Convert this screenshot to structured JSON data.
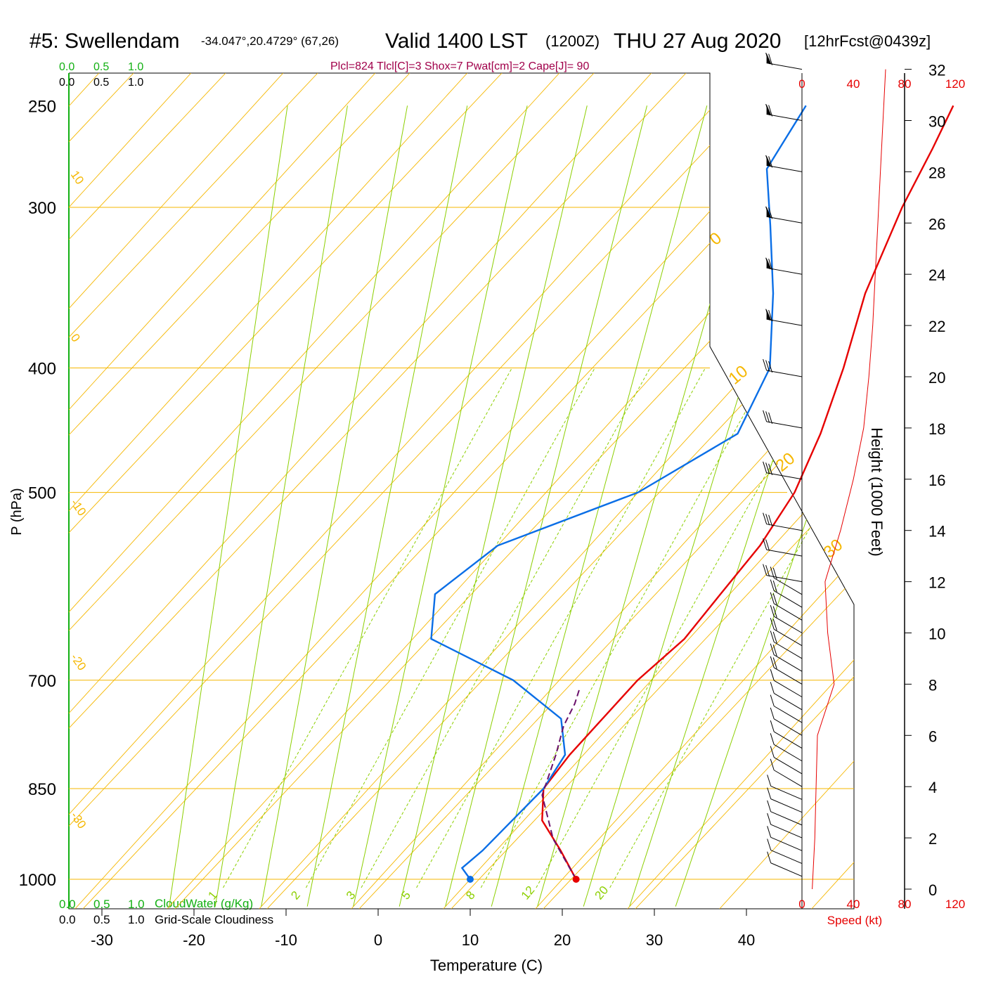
{
  "header": {
    "station": "#5: Swellendam",
    "coords": "-34.047°,20.4729° (67,26)",
    "valid": "Valid 1400 LST",
    "utc": "(1200Z)",
    "date": "THU 27 Aug 2020",
    "forecast": "[12hrFcst@0439z]",
    "indices": "Plcl=824 Tlcl[C]=3 Shox=7 Pwat[cm]=2 Cape[J]= 90"
  },
  "labels": {
    "pressure_axis": "P (hPa)",
    "temp_axis": "Temperature (C)",
    "height_axis": "Height (1000 Feet)",
    "speed_axis": "Speed (kt)",
    "cloudwater": "CloudWater (g/Kg)",
    "cloudiness": "Grid-Scale Cloudiness",
    "scale_0": "0.0",
    "scale_05": "0.5",
    "scale_10": "1.0"
  },
  "colors": {
    "isobar": "#f5b700",
    "dry_adiabat": "#f5b700",
    "moist_adiabat": "#8ccf00",
    "mixing_ratio": "#8ccf00",
    "temperature": "#e60000",
    "dewpoint": "#0a6ee6",
    "parcel": "#6a0f6a",
    "indices": "#a0004a",
    "cloud": "#12b012",
    "speed": "#e60000"
  },
  "chart_data": {
    "type": "line",
    "title": "#5: Swellendam",
    "xlabel": "Temperature (C)",
    "ylabel": "P (hPa)",
    "xticks": [
      -30,
      -20,
      -10,
      0,
      10,
      20,
      30,
      40
    ],
    "pressure_levels": [
      250,
      300,
      400,
      500,
      700,
      850,
      1000
    ],
    "height_ticks": [
      0,
      2,
      4,
      6,
      8,
      10,
      12,
      14,
      16,
      18,
      20,
      22,
      24,
      26,
      28,
      30,
      32
    ],
    "speed_ticks_top": [
      "0",
      "40",
      "80",
      "120"
    ],
    "speed_ticks_bottom": [
      "0",
      "40",
      "80",
      "120"
    ],
    "mixing_ratio_labels": [
      "1",
      "2",
      "3",
      "5",
      "8",
      "12",
      "20"
    ],
    "isotherm_labels_left": [
      "10",
      "0",
      "-10",
      "-20",
      "-30"
    ],
    "isotherm_labels_right": [
      "0",
      "10",
      "20",
      "30"
    ],
    "series": [
      {
        "name": "Temperature",
        "points": [
          [
            21.5,
            1000
          ],
          [
            17,
            950
          ],
          [
            12,
            900
          ],
          [
            9,
            850
          ],
          [
            8.5,
            800
          ],
          [
            8.5,
            750
          ],
          [
            8.5,
            700
          ],
          [
            9.5,
            650
          ],
          [
            9,
            600
          ],
          [
            8.5,
            550
          ],
          [
            7,
            500
          ],
          [
            4,
            450
          ],
          [
            0,
            400
          ],
          [
            -5,
            350
          ],
          [
            -9.5,
            300
          ],
          [
            -12,
            270
          ],
          [
            -14,
            250
          ]
        ]
      },
      {
        "name": "Dewpoint",
        "points": [
          [
            10,
            1000
          ],
          [
            8,
            980
          ],
          [
            8.5,
            950
          ],
          [
            9,
            850
          ],
          [
            8,
            800
          ],
          [
            4,
            750
          ],
          [
            -5,
            700
          ],
          [
            -18,
            650
          ],
          [
            -22,
            600
          ],
          [
            -20,
            550
          ],
          [
            -10,
            500
          ],
          [
            -5,
            450
          ],
          [
            -8,
            400
          ],
          [
            -15,
            350
          ],
          [
            -22,
            310
          ],
          [
            -28,
            280
          ],
          [
            -30,
            250
          ]
        ]
      },
      {
        "name": "Parcel",
        "points": [
          [
            21.5,
            1000
          ],
          [
            15,
            930
          ],
          [
            9.5,
            860
          ],
          [
            7,
            800
          ],
          [
            5,
            760
          ],
          [
            4,
            730
          ],
          [
            3,
            710
          ]
        ]
      }
    ],
    "surface_temperature": 21.5,
    "surface_dewpoint": 10,
    "wind_speed_profile_kt": [
      [
        0,
        8
      ],
      [
        2,
        10
      ],
      [
        4,
        11
      ],
      [
        6,
        12
      ],
      [
        8,
        25
      ],
      [
        10,
        20
      ],
      [
        12,
        18
      ],
      [
        14,
        30
      ],
      [
        16,
        40
      ],
      [
        18,
        48
      ],
      [
        20,
        52
      ],
      [
        22,
        55
      ],
      [
        24,
        57
      ],
      [
        26,
        59
      ],
      [
        28,
        61
      ],
      [
        30,
        63
      ],
      [
        32,
        65
      ]
    ],
    "wind_barb_heights_kft": [
      0.5,
      1,
      1.5,
      2,
      2.5,
      3,
      3.5,
      4,
      4.5,
      5,
      5.5,
      6,
      6.5,
      7,
      7.5,
      8,
      8.5,
      9,
      9.5,
      10,
      10.5,
      11,
      11.5,
      12,
      13,
      14,
      16,
      18,
      20,
      22,
      24,
      26,
      28,
      30,
      32
    ],
    "axis_ranges": {
      "temperature": [
        -34,
        46
      ],
      "pressure": [
        250,
        1050
      ],
      "height_kft": [
        0,
        33
      ],
      "speed_kt": [
        0,
        120
      ]
    }
  }
}
